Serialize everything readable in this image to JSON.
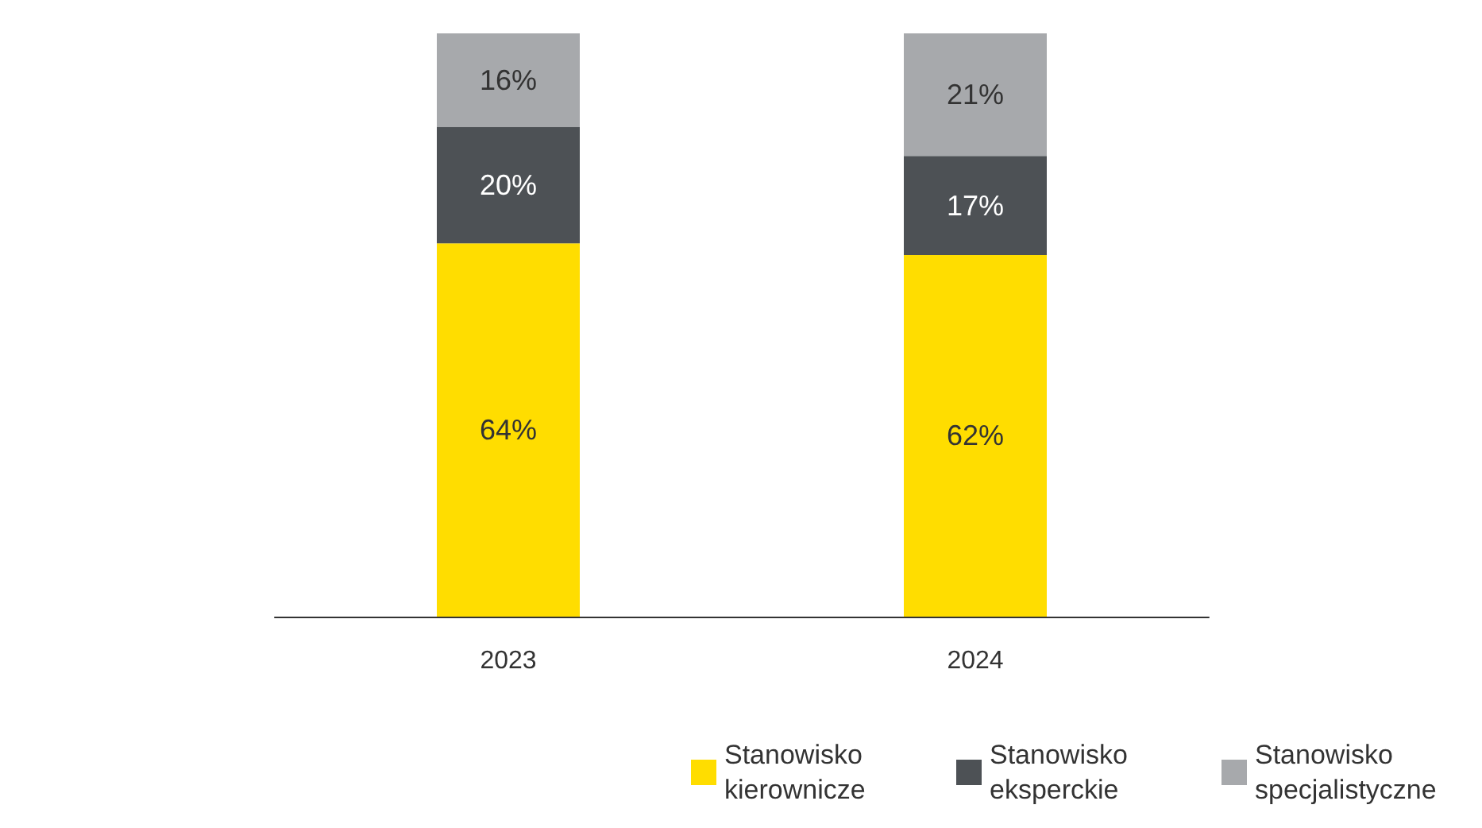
{
  "chart_data": {
    "type": "bar",
    "stacked": true,
    "categories": [
      "2023",
      "2024"
    ],
    "series": [
      {
        "name": "Stanowisko kierownicze",
        "color": "#ffdd00",
        "values": [
          64,
          62
        ],
        "value_labels": [
          "64%",
          "62%"
        ]
      },
      {
        "name": "Stanowisko eksperckie",
        "color": "#4d5155",
        "values": [
          20,
          17
        ],
        "value_labels": [
          "20%",
          "17%"
        ]
      },
      {
        "name": "Stanowisko specjalistyczne",
        "color": "#a7a9ac",
        "values": [
          16,
          21
        ],
        "value_labels": [
          "16%",
          "21%"
        ]
      }
    ],
    "legend": "bottom right"
  }
}
